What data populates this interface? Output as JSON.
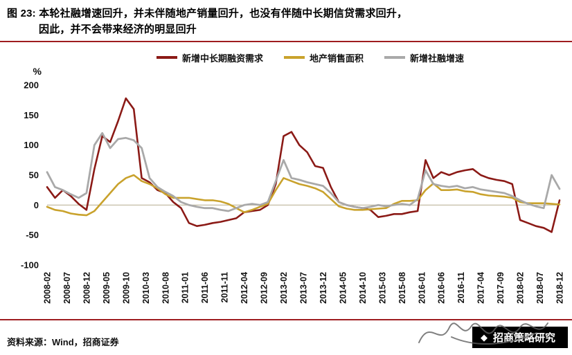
{
  "header": {
    "figure_no": "图 23:",
    "title_line1": "本轮社融增速回升，并未伴随地产销量回升，也没有伴随中长期信贷需求回升，",
    "title_line2": "因此，并不会带来经济的明显回升"
  },
  "colors": {
    "accent_red": "#9E1C1F",
    "series_red": "#8B1A16",
    "series_gold": "#C9A22C",
    "series_gray": "#A9A9A9",
    "zero_line": "#BDB59A",
    "tick_text": "#111111"
  },
  "footer": {
    "source": "资料来源：Wind，招商证券",
    "logo_text": "招商策略研究"
  },
  "chart_data": {
    "type": "line",
    "title": "本轮社融增速回升，并未伴随地产销量回升，也没有伴随中长期信贷需求回升，因此，并不会带来经济的明显回升",
    "unit": "%",
    "grid": false,
    "legend_position": "top",
    "ylim": [
      -100,
      200
    ],
    "y_ticks": [
      200,
      150,
      100,
      50,
      0,
      -50,
      -100
    ],
    "x": [
      "2008-02",
      "2008-04",
      "2008-06",
      "2008-08",
      "2008-10",
      "2008-12",
      "2009-02",
      "2009-04",
      "2009-06",
      "2009-08",
      "2009-10",
      "2009-12",
      "2010-02",
      "2010-04",
      "2010-06",
      "2010-08",
      "2010-10",
      "2010-12",
      "2011-02",
      "2011-04",
      "2011-06",
      "2011-08",
      "2011-10",
      "2011-12",
      "2012-02",
      "2012-04",
      "2012-06",
      "2012-08",
      "2012-10",
      "2012-12",
      "2013-02",
      "2013-04",
      "2013-06",
      "2013-08",
      "2013-10",
      "2013-12",
      "2014-02",
      "2014-04",
      "2014-06",
      "2014-08",
      "2014-10",
      "2014-12",
      "2015-02",
      "2015-04",
      "2015-06",
      "2015-08",
      "2015-10",
      "2015-12",
      "2016-02",
      "2016-04",
      "2016-06",
      "2016-08",
      "2016-10",
      "2016-12",
      "2017-02",
      "2017-04",
      "2017-06",
      "2017-08",
      "2017-10",
      "2017-12",
      "2018-02",
      "2018-04",
      "2018-06",
      "2018-08",
      "2018-10",
      "2018-12"
    ],
    "x_tick_labels": [
      "2008-02",
      "2008-07",
      "2008-12",
      "2009-05",
      "2009-10",
      "2010-03",
      "2010-08",
      "2011-01",
      "2011-06",
      "2011-11",
      "2012-04",
      "2012-09",
      "2013-02",
      "2013-07",
      "2013-12",
      "2014-05",
      "2014-10",
      "2015-03",
      "2015-08",
      "2016-01",
      "2016-06",
      "2016-11",
      "2017-04",
      "2017-09",
      "2018-02",
      "2018-07",
      "2018-12"
    ],
    "series": [
      {
        "name": "新增中长期融资需求",
        "color": "#8B1A16",
        "values": [
          30,
          12,
          25,
          15,
          2,
          -8,
          60,
          115,
          105,
          140,
          178,
          160,
          45,
          38,
          25,
          20,
          5,
          -5,
          -30,
          -35,
          -33,
          -30,
          -28,
          -25,
          -22,
          -12,
          -10,
          -8,
          0,
          35,
          115,
          122,
          100,
          88,
          65,
          62,
          30,
          5,
          0,
          -3,
          -5,
          -8,
          -20,
          -18,
          -15,
          -15,
          -12,
          -10,
          75,
          45,
          55,
          50,
          55,
          58,
          60,
          50,
          45,
          42,
          40,
          35,
          -25,
          -30,
          -35,
          -38,
          -45,
          8
        ]
      },
      {
        "name": "地产销售面积",
        "color": "#C9A22C",
        "values": [
          -3,
          -8,
          -10,
          -14,
          -16,
          -17,
          -10,
          5,
          20,
          35,
          45,
          50,
          40,
          35,
          28,
          18,
          12,
          12,
          12,
          10,
          8,
          8,
          6,
          2,
          -5,
          -12,
          -8,
          -3,
          2,
          25,
          45,
          40,
          35,
          32,
          28,
          22,
          10,
          -2,
          -6,
          -8,
          -8,
          -7,
          -6,
          -5,
          2,
          7,
          7,
          8,
          25,
          36,
          25,
          25,
          26,
          23,
          22,
          18,
          16,
          15,
          14,
          12,
          5,
          3,
          3,
          3,
          2,
          1
        ]
      },
      {
        "name": "新增社融增速",
        "color": "#A9A9A9",
        "values": [
          55,
          30,
          25,
          18,
          12,
          20,
          100,
          120,
          95,
          110,
          112,
          108,
          95,
          45,
          30,
          22,
          15,
          5,
          0,
          -3,
          -5,
          -5,
          -8,
          -10,
          -5,
          0,
          2,
          0,
          5,
          40,
          75,
          45,
          42,
          38,
          35,
          32,
          20,
          5,
          0,
          -3,
          -5,
          -3,
          0,
          -2,
          0,
          2,
          0,
          10,
          58,
          35,
          32,
          30,
          32,
          28,
          30,
          26,
          24,
          22,
          20,
          15,
          8,
          2,
          -2,
          -5,
          50,
          27
        ]
      }
    ]
  }
}
